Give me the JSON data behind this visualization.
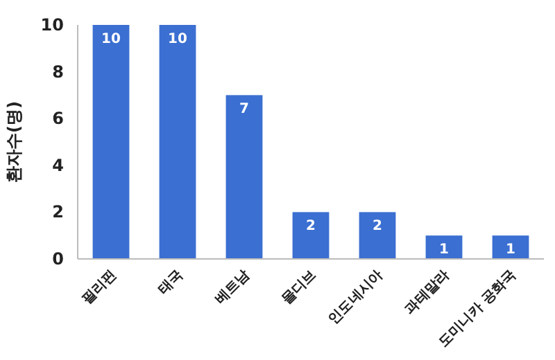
{
  "chart_data": {
    "type": "bar",
    "ylabel": "환자수(명)",
    "categories": [
      "필리핀",
      "태국",
      "베트남",
      "몰디브",
      "인도네시아",
      "과테말라",
      "도미니카 공화국"
    ],
    "values": [
      10,
      10,
      7,
      2,
      2,
      1,
      1
    ],
    "color": "#3b6fd1",
    "ylim": [
      0,
      10
    ],
    "yticks": [
      0,
      2,
      4,
      6,
      8,
      10
    ],
    "data_labels": true
  }
}
